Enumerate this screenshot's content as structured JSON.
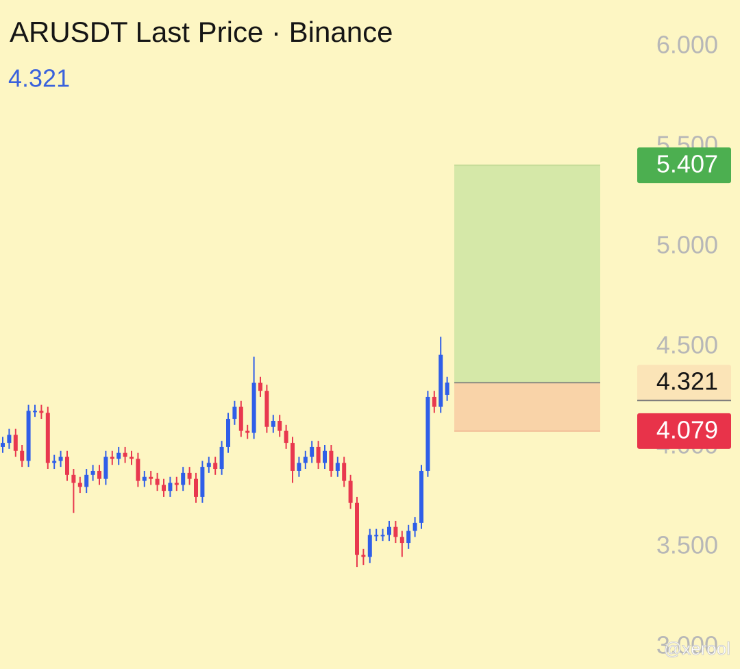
{
  "chart_data": {
    "type": "candlestick",
    "title": "ARUSDT Last Price · Binance",
    "last_price": 4.321,
    "watermark": "@xerool",
    "up_color": "#2f5ee8",
    "down_color": "#e8384f",
    "ylim": [
      2.89,
      6.233
    ],
    "yticks": [
      {
        "value": 3,
        "label": "3.000"
      },
      {
        "value": 3.5,
        "label": "3.500"
      },
      {
        "value": 4,
        "label": "4.000"
      },
      {
        "value": 4.5,
        "label": "4.500"
      },
      {
        "value": 5,
        "label": "5.000"
      },
      {
        "value": 5.5,
        "label": "5.500"
      },
      {
        "value": 6,
        "label": "6.000"
      }
    ],
    "position": {
      "entry": 4.321,
      "target": 5.407,
      "stop": 4.079,
      "profit_color": "#d5e8a8",
      "loss_color": "#f9d3a8"
    },
    "open": [
      4.0,
      4.02,
      4.06,
      3.98,
      3.93,
      4.18,
      4.18,
      4.17,
      3.92,
      3.93,
      3.95,
      3.86,
      3.82,
      3.8,
      3.86,
      3.88,
      3.84,
      3.95,
      3.94,
      3.97,
      3.95,
      3.94,
      3.83,
      3.85,
      3.84,
      3.81,
      3.78,
      3.82,
      3.81,
      3.87,
      3.84,
      3.75,
      3.9,
      3.92,
      3.89,
      4.0,
      4.14,
      4.2,
      4.08,
      4.07,
      4.32,
      4.28,
      4.1,
      4.13,
      4.08,
      4.02,
      3.88,
      3.92,
      3.95,
      4.0,
      3.92,
      3.98,
      3.88,
      3.92,
      3.83,
      3.72,
      3.46,
      3.45,
      3.56,
      3.56,
      3.56,
      3.6,
      3.55,
      3.52,
      3.58,
      3.62,
      3.88,
      4.25,
      4.2,
      4.26
    ],
    "high": [
      4.05,
      4.09,
      4.09,
      4.01,
      4.21,
      4.21,
      4.21,
      4.2,
      3.96,
      3.98,
      3.98,
      3.89,
      3.85,
      3.89,
      3.91,
      3.91,
      3.98,
      3.98,
      4.0,
      4.0,
      3.98,
      3.97,
      3.88,
      3.88,
      3.87,
      3.84,
      3.85,
      3.85,
      3.9,
      3.9,
      3.87,
      3.93,
      3.95,
      3.95,
      4.03,
      4.17,
      4.23,
      4.23,
      4.11,
      4.45,
      4.35,
      4.31,
      4.16,
      4.16,
      4.11,
      4.05,
      3.95,
      3.98,
      4.03,
      4.03,
      4.01,
      4.01,
      3.95,
      3.95,
      3.86,
      3.75,
      3.49,
      3.59,
      3.59,
      3.59,
      3.63,
      3.63,
      3.58,
      3.61,
      3.65,
      3.91,
      4.28,
      4.28,
      4.55,
      4.35
    ],
    "low": [
      3.97,
      3.99,
      3.95,
      3.9,
      3.9,
      4.15,
      4.14,
      3.89,
      3.89,
      3.9,
      3.83,
      3.67,
      3.77,
      3.77,
      3.83,
      3.81,
      3.81,
      3.91,
      3.91,
      3.92,
      3.91,
      3.8,
      3.8,
      3.81,
      3.78,
      3.75,
      3.75,
      3.78,
      3.78,
      3.81,
      3.72,
      3.72,
      3.87,
      3.86,
      3.86,
      3.97,
      4.11,
      4.05,
      4.04,
      4.04,
      4.25,
      4.07,
      4.07,
      4.05,
      3.99,
      3.82,
      3.85,
      3.89,
      3.92,
      3.89,
      3.89,
      3.85,
      3.85,
      3.8,
      3.69,
      3.4,
      3.41,
      3.42,
      3.53,
      3.53,
      3.53,
      3.52,
      3.45,
      3.49,
      3.55,
      3.59,
      3.85,
      4.17,
      4.17,
      4.23
    ],
    "close": [
      4.02,
      4.06,
      3.98,
      3.93,
      4.18,
      4.18,
      4.17,
      3.92,
      3.93,
      3.95,
      3.86,
      3.82,
      3.8,
      3.86,
      3.88,
      3.84,
      3.95,
      3.94,
      3.97,
      3.95,
      3.94,
      3.83,
      3.85,
      3.84,
      3.81,
      3.78,
      3.82,
      3.81,
      3.87,
      3.84,
      3.75,
      3.9,
      3.92,
      3.89,
      4.0,
      4.14,
      4.2,
      4.08,
      4.07,
      4.32,
      4.28,
      4.1,
      4.13,
      4.08,
      4.02,
      3.88,
      3.92,
      3.95,
      4.0,
      3.92,
      3.98,
      3.88,
      3.92,
      3.83,
      3.72,
      3.46,
      3.45,
      3.56,
      3.56,
      3.56,
      3.6,
      3.55,
      3.52,
      3.58,
      3.62,
      3.88,
      4.25,
      4.2,
      4.46,
      4.321
    ]
  }
}
